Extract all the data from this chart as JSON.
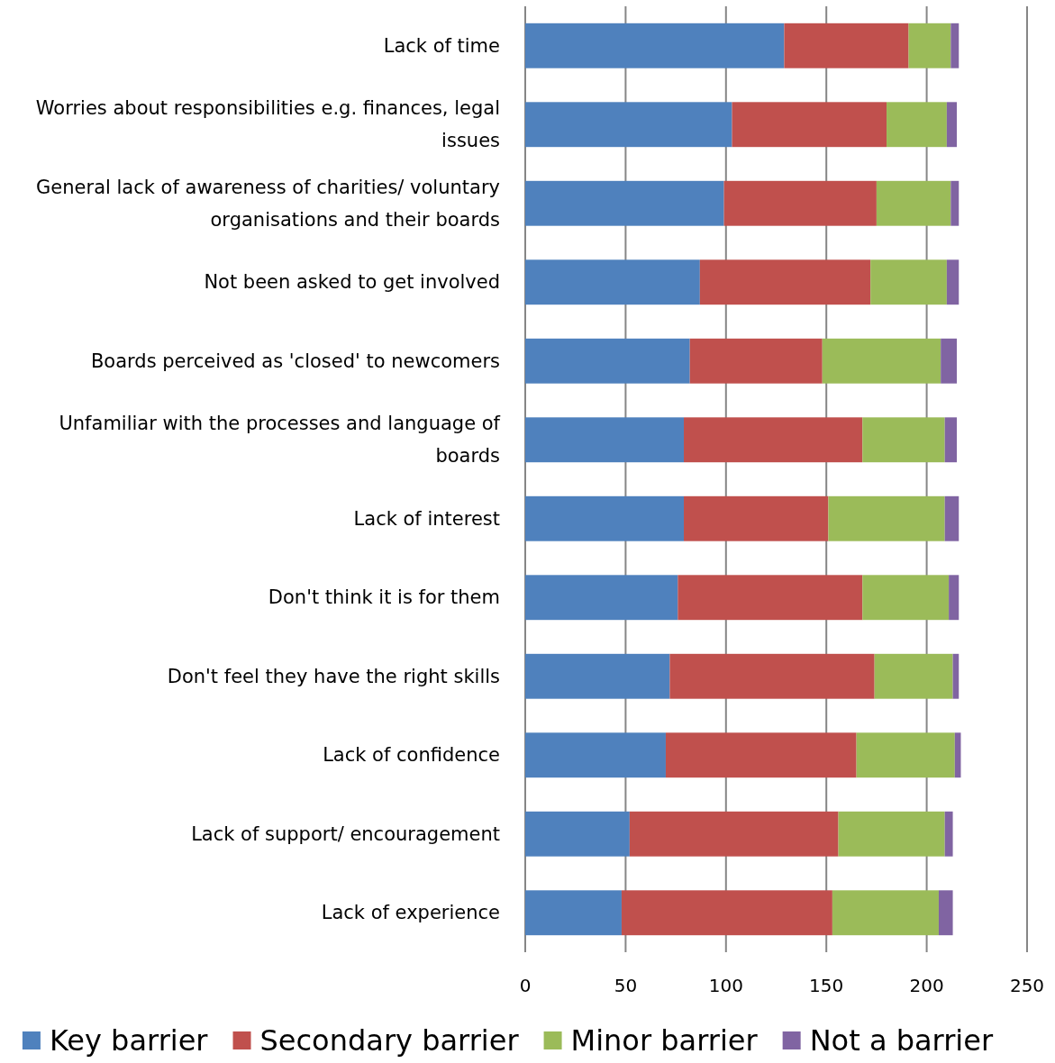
{
  "chart_data": {
    "type": "bar",
    "orientation": "horizontal",
    "stacked": true,
    "categories": [
      "Lack of time",
      "Worries about responsibilities e.g. finances, legal issues",
      "General lack of awareness of charities/ voluntary organisations and their boards",
      "Not been asked to get involved",
      "Boards perceived as 'closed' to newcomers",
      "Unfamiliar with the processes and language of boards",
      "Lack of interest",
      "Don't think it is for them",
      "Don't feel they have the right skills",
      "Lack of confidence",
      "Lack of support/ encouragement",
      "Lack of experience"
    ],
    "series": [
      {
        "name": "Key barrier",
        "color": "#4f81bd",
        "values": [
          129,
          103,
          99,
          87,
          82,
          79,
          79,
          76,
          72,
          70,
          52,
          48
        ]
      },
      {
        "name": "Secondary barrier",
        "color": "#c0504d",
        "values": [
          62,
          77,
          76,
          85,
          66,
          89,
          72,
          92,
          102,
          95,
          104,
          105
        ]
      },
      {
        "name": "Minor barrier",
        "color": "#9bbb59",
        "values": [
          21,
          30,
          37,
          38,
          59,
          41,
          58,
          43,
          39,
          49,
          53,
          53
        ]
      },
      {
        "name": "Not a barrier",
        "color": "#8064a2",
        "values": [
          4,
          5,
          4,
          6,
          8,
          6,
          7,
          5,
          3,
          3,
          4,
          7
        ]
      }
    ],
    "xlim": [
      0,
      250
    ],
    "xticks": [
      0,
      50,
      100,
      150,
      200,
      250
    ],
    "grid": "x",
    "legend": "bottom"
  }
}
